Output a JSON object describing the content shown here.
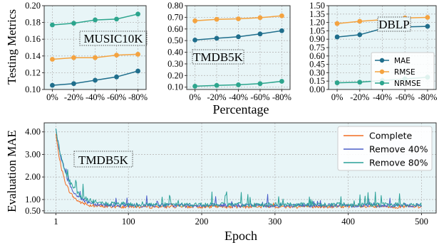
{
  "figure": {
    "top_ylabel": "Testing Metrics",
    "top_xlabel": "Percentage"
  },
  "chart_data": [
    {
      "type": "line",
      "panel_label": "MUSIC10K",
      "categories": [
        "0%",
        "-20%",
        "-40%",
        "-60%",
        "-80%"
      ],
      "ylim": [
        0.1,
        0.2
      ],
      "yticks": [
        "0.10",
        "0.12",
        "0.14",
        "0.16",
        "0.18",
        "0.20"
      ],
      "grid": true,
      "series": [
        {
          "key": "MAE",
          "color": "#1f6e8c",
          "values": [
            0.105,
            0.107,
            0.111,
            0.115,
            0.122
          ]
        },
        {
          "key": "RMSE",
          "color": "#f4a340",
          "values": [
            0.136,
            0.138,
            0.138,
            0.141,
            0.142
          ]
        },
        {
          "key": "NRMSE",
          "color": "#2ca58d",
          "values": [
            0.177,
            0.179,
            0.183,
            0.184,
            0.19
          ]
        }
      ]
    },
    {
      "type": "line",
      "panel_label": "TMDB5K",
      "categories": [
        "0%",
        "-20%",
        "-40%",
        "-60%",
        "-80%"
      ],
      "ylim": [
        0.08,
        0.8
      ],
      "yticks": [
        "0.10",
        "0.20",
        "0.30",
        "0.40",
        "0.50",
        "0.60",
        "0.70",
        "0.80"
      ],
      "grid": true,
      "series": [
        {
          "key": "MAE",
          "color": "#1f6e8c",
          "values": [
            0.505,
            0.52,
            0.533,
            0.557,
            0.585
          ]
        },
        {
          "key": "RMSE",
          "color": "#f4a340",
          "values": [
            0.67,
            0.683,
            0.687,
            0.697,
            0.713
          ]
        },
        {
          "key": "NRMSE",
          "color": "#2ca58d",
          "values": [
            0.108,
            0.115,
            0.12,
            0.13,
            0.15
          ]
        }
      ]
    },
    {
      "type": "line",
      "panel_label": "DBLP",
      "categories": [
        "0%",
        "-20%",
        "-40%",
        "-60%",
        "-80%"
      ],
      "ylim": [
        0.0,
        1.5
      ],
      "yticks": [
        "0.00",
        "0.15",
        "0.30",
        "0.45",
        "0.60",
        "0.75",
        "0.90",
        "1.05",
        "1.20",
        "1.35",
        "1.50"
      ],
      "grid": true,
      "legend": {
        "placement": "center-right",
        "entries": [
          {
            "label": "MAE",
            "color": "#1f6e8c"
          },
          {
            "label": "RMSE",
            "color": "#f4a340"
          },
          {
            "label": "NRMSE",
            "color": "#2ca58d"
          }
        ]
      },
      "series": [
        {
          "key": "MAE",
          "color": "#1f6e8c",
          "values": [
            0.94,
            0.98,
            1.09,
            1.12,
            1.13
          ]
        },
        {
          "key": "RMSE",
          "color": "#f4a340",
          "values": [
            1.18,
            1.22,
            1.25,
            1.28,
            1.29
          ]
        },
        {
          "key": "NRMSE",
          "color": "#2ca58d",
          "values": [
            0.12,
            0.13,
            0.16,
            0.19,
            0.22
          ]
        }
      ]
    },
    {
      "type": "line",
      "panel_label": "TMDB5K",
      "xlabel": "Epoch",
      "ylabel": "Evaluation MAE",
      "xlim": [
        -15,
        520
      ],
      "xticks": [
        1,
        100,
        200,
        300,
        400,
        500
      ],
      "ylim": [
        0.4,
        4.4
      ],
      "yticks": [
        "0.50",
        "1.00",
        "2.00",
        "3.00",
        "4.00"
      ],
      "grid": true,
      "legend": {
        "placement": "top-right",
        "entries": [
          {
            "label": "Complete",
            "color": "#f26b21"
          },
          {
            "label": "Remove 40%",
            "color": "#4a5dc9"
          },
          {
            "label": "Remove 80%",
            "color": "#2aa198"
          }
        ]
      },
      "series": [
        {
          "key": "Complete",
          "color": "#f26b21",
          "epochs": 500,
          "start": 3.9,
          "floor": 0.68,
          "decay": 12,
          "noise": 0.07,
          "spike_rate": 0.02,
          "spike": 0.2
        },
        {
          "key": "Remove 40%",
          "color": "#4a5dc9",
          "epochs": 500,
          "start": 4.2,
          "floor": 0.74,
          "decay": 14,
          "noise": 0.09,
          "spike_rate": 0.05,
          "spike": 0.45
        },
        {
          "key": "Remove 80%",
          "color": "#2aa198",
          "epochs": 500,
          "start": 4.1,
          "floor": 0.77,
          "decay": 16,
          "noise": 0.1,
          "spike_rate": 0.06,
          "spike": 0.55
        }
      ]
    }
  ]
}
